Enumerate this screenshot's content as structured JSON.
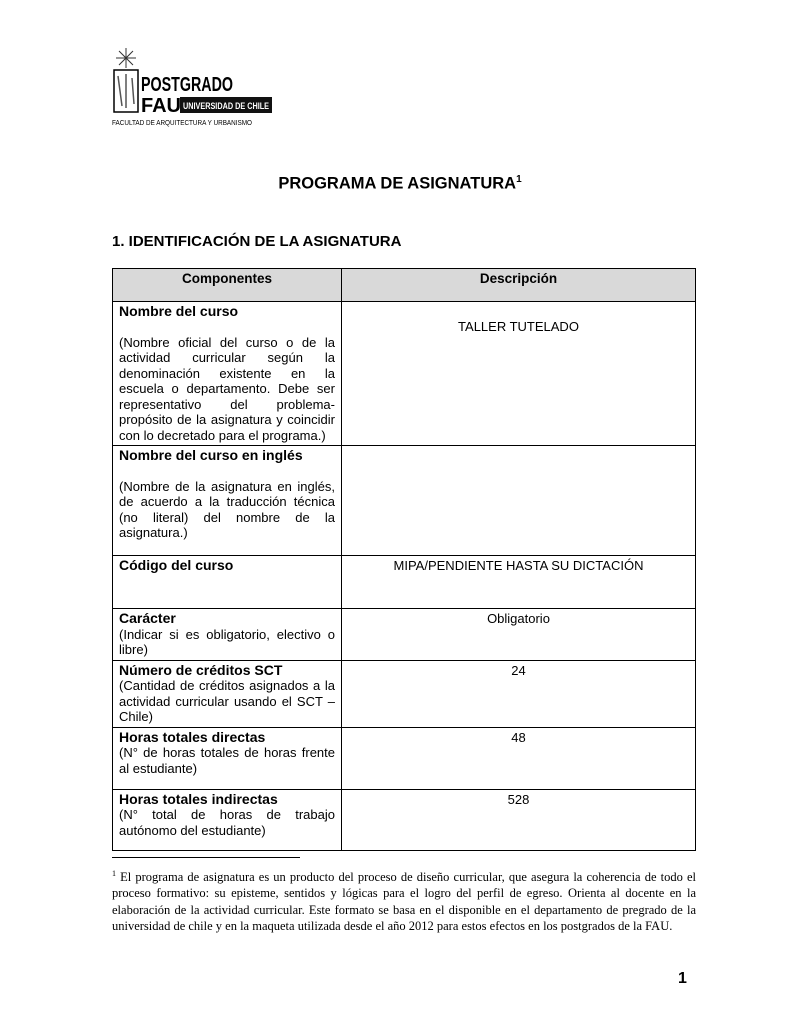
{
  "logo": {
    "line1": "POSTGRADO",
    "line2": "FAU",
    "badge": "UNIVERSIDAD DE CHILE",
    "caption": "FACULTAD DE ARQUITECTURA Y URBANISMO"
  },
  "title": "PROGRAMA DE ASIGNATURA",
  "title_sup": "1",
  "section": "1. IDENTIFICACIÓN DE LA ASIGNATURA",
  "table": {
    "headers": [
      "Componentes",
      "Descripción"
    ],
    "rows": [
      {
        "label": "Nombre del curso",
        "note": "(Nombre oficial del curso o de la actividad curricular según la denominación existente en la escuela o departamento. Debe ser representativo del problema-propósito de la asignatura y coincidir con lo decretado para el programa.)",
        "value": "TALLER TUTELADO"
      },
      {
        "label": "Nombre del curso en inglés",
        "note": "(Nombre de la asignatura en inglés, de acuerdo a la traducción técnica (no literal) del nombre de la asignatura.)",
        "value": ""
      },
      {
        "label": "Código del curso",
        "note": "",
        "value": "MIPA/PENDIENTE HASTA SU DICTACIÓN"
      },
      {
        "label": "Carácter",
        "note": "(Indicar si es obligatorio, electivo o libre)",
        "value": "Obligatorio"
      },
      {
        "label": "Número de créditos SCT",
        "note": "(Cantidad de créditos asignados a la actividad curricular usando el SCT – Chile)",
        "value": "24"
      },
      {
        "label": "Horas totales directas",
        "note": "(N° de horas totales de horas frente al estudiante)",
        "value": "48"
      },
      {
        "label": "Horas totales indirectas",
        "note": "(N° total de horas de trabajo autónomo del estudiante)",
        "value": "528"
      }
    ]
  },
  "footnote": {
    "mark": "1",
    "text": " El programa de asignatura es un producto del proceso de diseño curricular, que asegura la coherencia de todo el proceso formativo: su episteme, sentidos y lógicas para el logro del perfil de egreso. Orienta al docente en la elaboración de la actividad curricular. Este formato se basa en el disponible en el departamento de pregrado de la universidad de chile y en la maqueta utilizada desde el año 2012 para estos efectos en los postgrados de la FAU."
  },
  "page_number": "1"
}
